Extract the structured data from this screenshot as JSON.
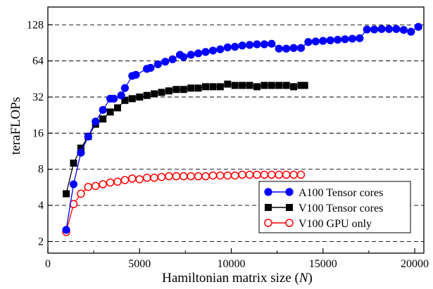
{
  "chart_data": {
    "type": "line",
    "xlabel_main": "Hamiltonian matrix size (",
    "xlabel_var": "N",
    "xlabel_end": ")",
    "ylabel": "teraFLOPs",
    "xlim": [
      0,
      20500
    ],
    "ylim": [
      1.6,
      180
    ],
    "yscale": "log2",
    "grid": "horizontal-dashed",
    "legend_placement": "bottom-right",
    "x_ticks": [
      0,
      5000,
      10000,
      15000,
      20000
    ],
    "x_tick_labels": [
      "0",
      "5000",
      "10000",
      "15000",
      "20000"
    ],
    "y_ticks": [
      2,
      4,
      8,
      16,
      32,
      64,
      128
    ],
    "y_tick_labels": [
      "2",
      "4",
      "8",
      "16",
      "32",
      "64",
      "128"
    ],
    "series": [
      {
        "name": "A100 Tensor cores",
        "color": "#0000ff",
        "marker": "circle-filled",
        "x": [
          1000,
          1400,
          1800,
          2200,
          2600,
          3000,
          3400,
          3600,
          4000,
          4200,
          4600,
          4800,
          5400,
          5600,
          6000,
          6400,
          6800,
          7200,
          7400,
          7800,
          8200,
          8600,
          9000,
          9400,
          9800,
          10200,
          10600,
          11000,
          11400,
          11800,
          12200,
          12600,
          13000,
          13400,
          13800,
          14200,
          14600,
          15000,
          15400,
          15800,
          16200,
          16600,
          17000,
          17400,
          17800,
          18200,
          18600,
          19000,
          19400,
          19800,
          20200
        ],
        "values": [
          2.5,
          6,
          11,
          15,
          20,
          25,
          31,
          31,
          33,
          38,
          48,
          49,
          55,
          56,
          60,
          63,
          66,
          72,
          69,
          72,
          74,
          76,
          78,
          80,
          83,
          84,
          86,
          87,
          88,
          88,
          89,
          81,
          81,
          82,
          82,
          92,
          93,
          94,
          95,
          96,
          97,
          98,
          99,
          117,
          117,
          118,
          118,
          118,
          116,
          112,
          123
        ]
      },
      {
        "name": "V100 Tensor cores",
        "color": "#000000",
        "marker": "square-filled",
        "x": [
          1000,
          1400,
          1800,
          2200,
          2600,
          3000,
          3400,
          3800,
          4200,
          4600,
          5000,
          5400,
          5800,
          6200,
          6600,
          7000,
          7400,
          7800,
          8200,
          8600,
          9000,
          9400,
          9800,
          10200,
          10600,
          11000,
          11400,
          11800,
          12200,
          12600,
          13000,
          13400,
          13800,
          14000
        ],
        "values": [
          5,
          9,
          12,
          15,
          19,
          21,
          24,
          26,
          30,
          31,
          32,
          33,
          34,
          35,
          36,
          37,
          37,
          38,
          38,
          39,
          39,
          39,
          41,
          40,
          40,
          40,
          39,
          40,
          40,
          40,
          40,
          39,
          40,
          40
        ]
      },
      {
        "name": "V100 GPU only",
        "color": "#ff0000",
        "marker": "circle-open",
        "x": [
          1000,
          1400,
          1800,
          2200,
          2600,
          3000,
          3400,
          3800,
          4200,
          4600,
          5000,
          5400,
          5800,
          6200,
          6600,
          7000,
          7400,
          7800,
          8200,
          8600,
          9000,
          9400,
          9800,
          10200,
          10600,
          11000,
          11400,
          11800,
          12200,
          12600,
          13000,
          13400,
          13800
        ],
        "values": [
          2.4,
          4.1,
          5,
          5.7,
          5.8,
          6,
          6.2,
          6.3,
          6.5,
          6.7,
          6.6,
          6.8,
          6.8,
          6.9,
          7,
          7,
          7,
          7,
          7,
          7,
          7.1,
          7.1,
          7.1,
          7.1,
          7.2,
          7.2,
          7.2,
          7.2,
          7.2,
          7.2,
          7.2,
          7.2,
          7.2
        ]
      }
    ]
  }
}
